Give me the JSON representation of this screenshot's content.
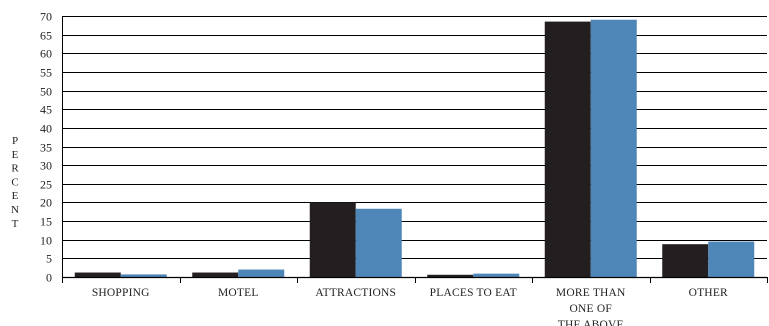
{
  "chart_data": {
    "type": "bar",
    "ylabel": "PERCENT",
    "ylim": [
      0,
      70
    ],
    "yticks": [
      0,
      5,
      10,
      15,
      20,
      25,
      30,
      35,
      40,
      45,
      50,
      55,
      60,
      65,
      70
    ],
    "grid": true,
    "legend": "none",
    "categories": [
      [
        "SHOPPING"
      ],
      [
        "MOTEL"
      ],
      [
        "ATTRACTIONS"
      ],
      [
        "PLACES TO EAT"
      ],
      [
        "MORE THAN",
        "ONE OF",
        "THE ABOVE"
      ],
      [
        "OTHER"
      ]
    ],
    "series": [
      {
        "color": "#231f20",
        "values": [
          1.2,
          1.2,
          20.0,
          0.6,
          68.5,
          8.8
        ]
      },
      {
        "color": "#4f86b8",
        "values": [
          0.7,
          2.0,
          18.3,
          0.9,
          69.0,
          9.5
        ]
      }
    ]
  }
}
